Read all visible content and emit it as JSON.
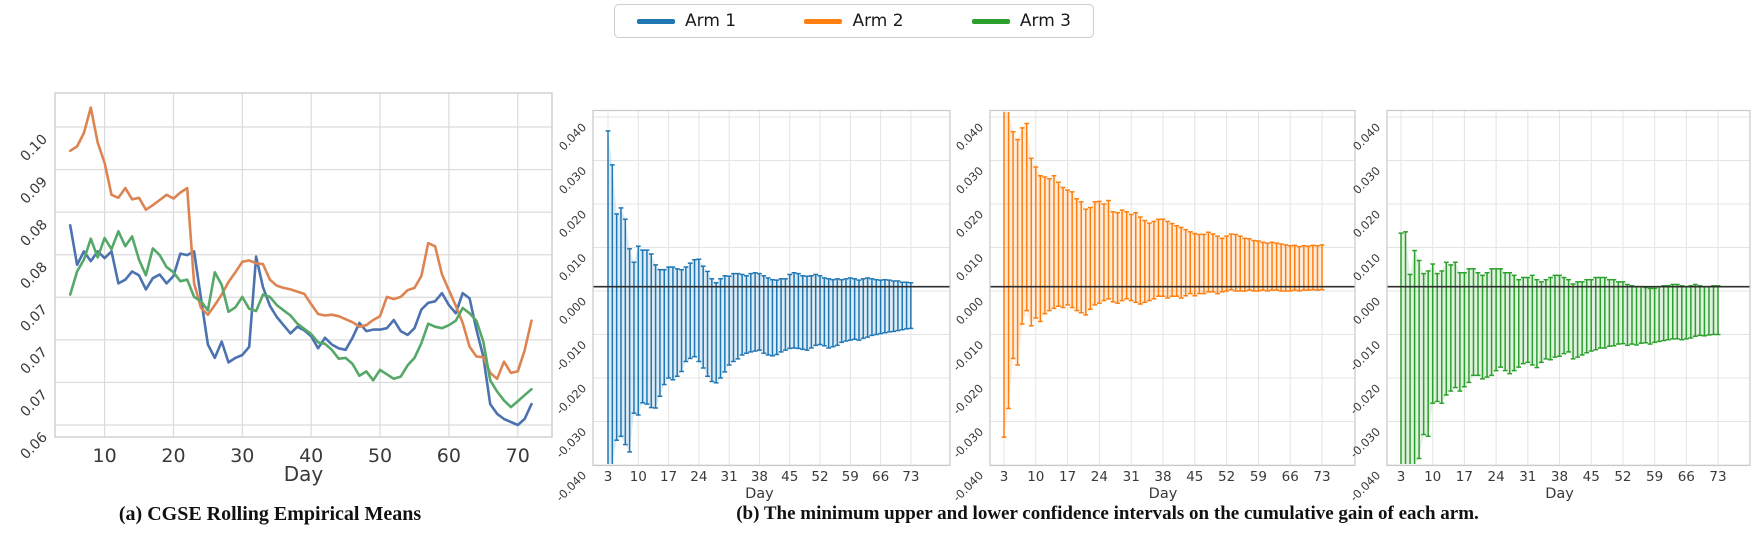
{
  "legend": {
    "items": [
      {
        "label": "Arm 1",
        "color": "#1f77b4"
      },
      {
        "label": "Arm 2",
        "color": "#ff7f0e"
      },
      {
        "label": "Arm 3",
        "color": "#2ca02c"
      }
    ]
  },
  "captions": {
    "a": "(a) CGSE Rolling Empirical Means",
    "b": "(b) The minimum upper and lower confidence intervals on the cumulative gain of each arm."
  },
  "chart_data": [
    {
      "id": "means",
      "type": "line",
      "title": "CGSE Rolling Empirical Means",
      "xlabel": "Day",
      "x_range": [
        5,
        72
      ],
      "x_ticks": [
        10,
        20,
        30,
        40,
        50,
        60,
        70
      ],
      "y_tick_labels_top_to_bottom": [
        "0.10",
        "0.09",
        "0.08",
        "0.08",
        "0.07",
        "0.07",
        "0.07",
        "0.06"
      ],
      "y_axis_approx_range": [
        0.06,
        0.1
      ],
      "grid": true,
      "series": [
        {
          "name": "Arm 1",
          "color": "#4c72b0",
          "values": [
            0.0868,
            0.0815,
            0.0833,
            0.082,
            0.0833,
            0.0824,
            0.0833,
            0.079,
            0.0795,
            0.0806,
            0.0801,
            0.0782,
            0.0797,
            0.0802,
            0.079,
            0.08,
            0.083,
            0.0828,
            0.0833,
            0.077,
            0.0708,
            0.069,
            0.0712,
            0.0684,
            0.069,
            0.0694,
            0.0705,
            0.0826,
            0.0785,
            0.076,
            0.0745,
            0.0734,
            0.0723,
            0.0732,
            0.0727,
            0.0719,
            0.0703,
            0.0717,
            0.0708,
            0.0703,
            0.0701,
            0.0717,
            0.0737,
            0.0726,
            0.0728,
            0.0728,
            0.073,
            0.0741,
            0.0726,
            0.0721,
            0.073,
            0.0755,
            0.0764,
            0.0766,
            0.0777,
            0.0761,
            0.075,
            0.0777,
            0.077,
            0.0728,
            0.0692,
            0.0628,
            0.0615,
            0.0608,
            0.0604,
            0.06,
            0.0608,
            0.0628
          ]
        },
        {
          "name": "Arm 2",
          "color": "#dd8452",
          "values": [
            0.0968,
            0.0974,
            0.0992,
            0.1026,
            0.0979,
            0.0952,
            0.0909,
            0.0905,
            0.0918,
            0.0903,
            0.0905,
            0.0889,
            0.0895,
            0.0902,
            0.0909,
            0.0904,
            0.0912,
            0.0918,
            0.079,
            0.0757,
            0.0748,
            0.0761,
            0.0775,
            0.0792,
            0.0805,
            0.0819,
            0.0821,
            0.0817,
            0.0816,
            0.0795,
            0.0787,
            0.0784,
            0.0782,
            0.0779,
            0.0776,
            0.0762,
            0.0749,
            0.0747,
            0.0748,
            0.0746,
            0.0742,
            0.0738,
            0.0732,
            0.0734,
            0.0741,
            0.0746,
            0.0772,
            0.0769,
            0.0772,
            0.0781,
            0.0784,
            0.08,
            0.0844,
            0.084,
            0.0802,
            0.0781,
            0.076,
            0.0737,
            0.0705,
            0.0692,
            0.0691,
            0.067,
            0.0662,
            0.0685,
            0.067,
            0.0672,
            0.07,
            0.074
          ]
        },
        {
          "name": "Arm 3",
          "color": "#55a868",
          "values": [
            0.0775,
            0.0806,
            0.0822,
            0.085,
            0.0825,
            0.0851,
            0.0836,
            0.086,
            0.084,
            0.0853,
            0.0822,
            0.0801,
            0.0837,
            0.0828,
            0.0812,
            0.0805,
            0.0793,
            0.0795,
            0.0772,
            0.0766,
            0.0754,
            0.0805,
            0.0788,
            0.0752,
            0.0758,
            0.0772,
            0.0756,
            0.0753,
            0.0775,
            0.0772,
            0.0761,
            0.0754,
            0.0747,
            0.0736,
            0.0729,
            0.0722,
            0.0711,
            0.0709,
            0.0701,
            0.0689,
            0.069,
            0.0682,
            0.0666,
            0.0672,
            0.066,
            0.0674,
            0.0668,
            0.0662,
            0.0665,
            0.068,
            0.069,
            0.071,
            0.0736,
            0.0732,
            0.073,
            0.0734,
            0.074,
            0.0757,
            0.075,
            0.074,
            0.0712,
            0.066,
            0.0645,
            0.0633,
            0.0624,
            0.0632,
            0.064,
            0.0648
          ]
        }
      ]
    },
    {
      "id": "arm1_ci",
      "type": "errorbar",
      "arm": "Arm 1",
      "color": "#1f77b4",
      "xlabel": "Day",
      "x_range": [
        3,
        73
      ],
      "x_ticks": [
        3,
        10,
        17,
        24,
        31,
        38,
        45,
        52,
        59,
        66,
        73
      ],
      "ylim": [
        -0.04,
        0.04
      ],
      "y_tick_labels_top_to_bottom": [
        "0.040",
        "0.030",
        "0.020",
        "0.010",
        "0.000",
        "-0.010",
        "-0.020",
        "-0.030",
        "-0.040"
      ],
      "ref_line": 0.001,
      "upper": [
        0.0368,
        0.029,
        0.0177,
        0.0191,
        0.0165,
        0.0097,
        0.0066,
        0.0103,
        0.0094,
        0.0094,
        0.0085,
        0.006,
        0.0049,
        0.0049,
        0.0055,
        0.0055,
        0.0051,
        0.0049,
        0.0055,
        0.0064,
        0.0072,
        0.0073,
        0.0057,
        0.0045,
        0.0028,
        0.0019,
        0.0028,
        0.0035,
        0.0034,
        0.004,
        0.004,
        0.0038,
        0.0035,
        0.004,
        0.0042,
        0.004,
        0.0035,
        0.003,
        0.0026,
        0.0025,
        0.0028,
        0.0028,
        0.0038,
        0.0042,
        0.004,
        0.0035,
        0.0034,
        0.0035,
        0.0038,
        0.0035,
        0.003,
        0.0028,
        0.0026,
        0.0028,
        0.0026,
        0.0028,
        0.003,
        0.0028,
        0.0025,
        0.0028,
        0.003,
        0.0028,
        0.0026,
        0.0025,
        0.0026,
        0.0025,
        0.0023,
        0.0023,
        0.002,
        0.002,
        0.0019
      ],
      "lower": [
        -0.04,
        -0.0405,
        -0.0343,
        -0.0334,
        -0.0353,
        -0.037,
        -0.0281,
        -0.0285,
        -0.0257,
        -0.026,
        -0.0268,
        -0.0269,
        -0.0242,
        -0.0215,
        -0.02,
        -0.0204,
        -0.0196,
        -0.0185,
        -0.0162,
        -0.0155,
        -0.0151,
        -0.0162,
        -0.0177,
        -0.0196,
        -0.0208,
        -0.0211,
        -0.02,
        -0.0186,
        -0.017,
        -0.0162,
        -0.0156,
        -0.0147,
        -0.0143,
        -0.014,
        -0.0138,
        -0.0136,
        -0.0143,
        -0.0147,
        -0.0149,
        -0.0146,
        -0.014,
        -0.0136,
        -0.0132,
        -0.0131,
        -0.0132,
        -0.0134,
        -0.0136,
        -0.0131,
        -0.0125,
        -0.0123,
        -0.0126,
        -0.0131,
        -0.0128,
        -0.0125,
        -0.0118,
        -0.0115,
        -0.0113,
        -0.0111,
        -0.0113,
        -0.0109,
        -0.0106,
        -0.0102,
        -0.01,
        -0.0098,
        -0.0096,
        -0.0094,
        -0.0093,
        -0.0091,
        -0.0089,
        -0.0087,
        -0.0086
      ]
    },
    {
      "id": "arm2_ci",
      "type": "errorbar",
      "arm": "Arm 2",
      "color": "#ff7f0e",
      "xlabel": "Day",
      "x_range": [
        3,
        73
      ],
      "x_ticks": [
        3,
        10,
        17,
        24,
        31,
        38,
        45,
        52,
        59,
        66,
        73
      ],
      "ylim": [
        -0.04,
        0.04
      ],
      "y_tick_labels_top_to_bottom": [
        "0.040",
        "0.030",
        "0.020",
        "0.010",
        "0.000",
        "-0.010",
        "-0.020",
        "-0.030",
        "-0.040"
      ],
      "ref_line": 0.001,
      "upper": [
        0.0405,
        0.0405,
        0.0366,
        0.0348,
        0.0375,
        0.0385,
        0.0305,
        0.0285,
        0.0265,
        0.0262,
        0.0258,
        0.0265,
        0.025,
        0.0238,
        0.0232,
        0.0228,
        0.0212,
        0.0205,
        0.0188,
        0.0192,
        0.0205,
        0.0206,
        0.02,
        0.0208,
        0.0182,
        0.018,
        0.0186,
        0.0182,
        0.0176,
        0.018,
        0.017,
        0.0162,
        0.0156,
        0.016,
        0.0165,
        0.0165,
        0.016,
        0.0155,
        0.015,
        0.0146,
        0.0141,
        0.0136,
        0.0132,
        0.013,
        0.013,
        0.0135,
        0.0131,
        0.0126,
        0.0121,
        0.0126,
        0.0131,
        0.013,
        0.0126,
        0.0121,
        0.012,
        0.0116,
        0.0115,
        0.0112,
        0.011,
        0.0112,
        0.011,
        0.0108,
        0.0106,
        0.0104,
        0.0105,
        0.0102,
        0.0104,
        0.0103,
        0.0105,
        0.0104,
        0.0106
      ],
      "lower": [
        -0.0336,
        -0.027,
        -0.0155,
        -0.017,
        -0.0076,
        -0.0045,
        -0.008,
        -0.0062,
        -0.007,
        -0.0052,
        -0.0045,
        -0.004,
        -0.0035,
        -0.0038,
        -0.0032,
        -0.0038,
        -0.0045,
        -0.005,
        -0.0055,
        -0.0042,
        -0.0032,
        -0.0028,
        -0.0022,
        -0.0018,
        -0.0025,
        -0.0028,
        -0.0022,
        -0.0018,
        -0.0022,
        -0.0026,
        -0.003,
        -0.0026,
        -0.0022,
        -0.0018,
        -0.0012,
        -0.0012,
        -0.0016,
        -0.0012,
        -0.0012,
        -0.0016,
        -0.0011,
        -0.0006,
        -0.0011,
        -0.0006,
        -0.0006,
        -0.0002,
        -0.0002,
        -0.0006,
        -0.0002,
        0.0,
        0.0003,
        0.0,
        0.0,
        0.0,
        0.0002,
        0.0,
        0.0,
        0.0002,
        0.0,
        0.0002,
        0.0002,
        0.0,
        0.0,
        0.0,
        0.0002,
        0.0,
        0.0002,
        0.0002,
        0.0003,
        0.0002,
        0.0003
      ]
    },
    {
      "id": "arm3_ci",
      "type": "errorbar",
      "arm": "Arm 3",
      "color": "#2ca02c",
      "xlabel": "Day",
      "x_range": [
        3,
        73
      ],
      "x_ticks": [
        3,
        10,
        17,
        24,
        31,
        38,
        45,
        52,
        59,
        66,
        73
      ],
      "ylim": [
        -0.04,
        0.04
      ],
      "y_tick_labels_top_to_bottom": [
        "0.040",
        "0.030",
        "0.020",
        "0.010",
        "0.000",
        "-0.010",
        "-0.020",
        "-0.030",
        "-0.040"
      ],
      "ref_line": 0.001,
      "upper": [
        0.0133,
        0.0136,
        0.0038,
        0.0093,
        0.007,
        0.004,
        0.0046,
        0.0062,
        0.004,
        0.0046,
        0.0066,
        0.006,
        0.0066,
        0.0042,
        0.0042,
        0.0051,
        0.0051,
        0.0042,
        0.0036,
        0.0042,
        0.0051,
        0.0051,
        0.0051,
        0.0042,
        0.0042,
        0.0036,
        0.0026,
        0.0031,
        0.0031,
        0.0036,
        0.0026,
        0.0021,
        0.0026,
        0.0031,
        0.0036,
        0.0036,
        0.0031,
        0.0026,
        0.0016,
        0.0021,
        0.0021,
        0.0026,
        0.0026,
        0.0031,
        0.0031,
        0.0031,
        0.0026,
        0.0026,
        0.0021,
        0.0021,
        0.0015,
        0.0012,
        0.001,
        0.001,
        0.0008,
        0.0006,
        0.0006,
        0.001,
        0.0012,
        0.0012,
        0.0015,
        0.0015,
        0.0012,
        0.001,
        0.0012,
        0.0015,
        0.0012,
        0.001,
        0.001,
        0.0012,
        0.0012
      ],
      "lower": [
        -0.0405,
        -0.0405,
        -0.0405,
        -0.0402,
        -0.0385,
        -0.033,
        -0.0334,
        -0.0258,
        -0.0254,
        -0.0258,
        -0.0239,
        -0.023,
        -0.0222,
        -0.023,
        -0.022,
        -0.021,
        -0.0194,
        -0.0194,
        -0.0202,
        -0.0198,
        -0.0194,
        -0.0183,
        -0.0175,
        -0.0183,
        -0.019,
        -0.0183,
        -0.0175,
        -0.0167,
        -0.0164,
        -0.017,
        -0.0176,
        -0.0164,
        -0.0156,
        -0.0158,
        -0.0152,
        -0.015,
        -0.0144,
        -0.014,
        -0.0156,
        -0.0152,
        -0.0147,
        -0.0142,
        -0.0138,
        -0.0135,
        -0.0131,
        -0.0131,
        -0.0127,
        -0.0126,
        -0.0122,
        -0.0121,
        -0.0125,
        -0.0122,
        -0.0124,
        -0.012,
        -0.0119,
        -0.0122,
        -0.0118,
        -0.0116,
        -0.0114,
        -0.0112,
        -0.011,
        -0.011,
        -0.0112,
        -0.011,
        -0.0108,
        -0.0104,
        -0.0102,
        -0.0103,
        -0.0101,
        -0.01,
        -0.01
      ]
    }
  ]
}
